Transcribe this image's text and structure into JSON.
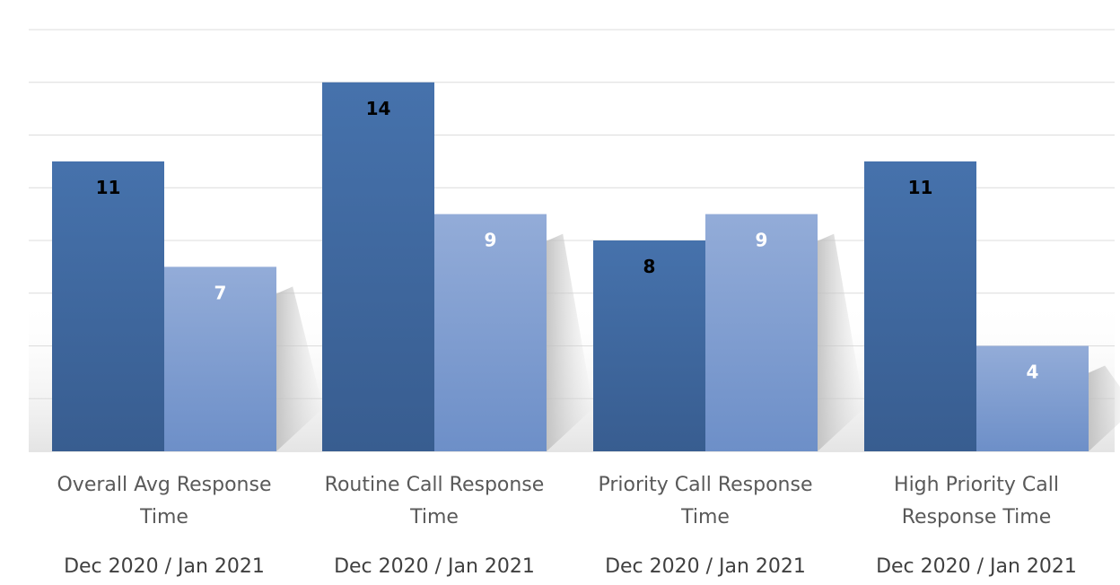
{
  "chart_data": {
    "type": "bar",
    "title": "",
    "xlabel": "",
    "ylabel": "",
    "categories": [
      "Overall Avg Response Time",
      "Routine Call Response Time",
      "Priority Call Response Time",
      "High Priority Call Response Time"
    ],
    "category_lines": [
      [
        "Overall Avg Response",
        "Time"
      ],
      [
        "Routine Call Response",
        "Time"
      ],
      [
        "Priority Call Response",
        "Time"
      ],
      [
        "High Priority Call",
        "Response Time"
      ]
    ],
    "period_labels": [
      "Dec 2020 / Jan 2021",
      "Dec 2020 / Jan 2021",
      "Dec 2020 / Jan 2021",
      "Dec 2020 / Jan 2021"
    ],
    "series": [
      {
        "values": [
          11,
          14,
          8,
          11
        ],
        "color": "#41689f",
        "label_color": "#000000"
      },
      {
        "values": [
          7,
          9,
          9,
          4
        ],
        "color": "#8ea8d4",
        "label_color": "#ffffff"
      }
    ],
    "ylim": [
      0,
      16
    ],
    "grid": true,
    "legend": "none",
    "data_labels": true
  }
}
